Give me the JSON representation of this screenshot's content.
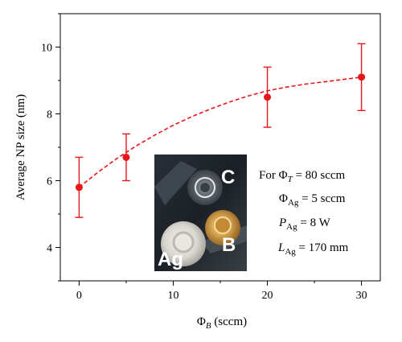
{
  "chart_data": {
    "type": "scatter",
    "xlabel_main": "Φ",
    "xlabel_sub": "B",
    "xlabel_unit": "(sccm)",
    "ylabel": "Average NP size (nm)",
    "xlim": [
      -2,
      32
    ],
    "ylim": [
      3,
      11
    ],
    "x_ticks": [
      0,
      10,
      20,
      30
    ],
    "y_ticks": [
      4,
      6,
      8,
      10
    ],
    "grid": false,
    "series": [
      {
        "x": [
          0,
          5,
          20,
          30
        ],
        "y": [
          5.8,
          6.7,
          8.5,
          9.1
        ],
        "err": [
          0.9,
          0.7,
          0.9,
          1.0
        ],
        "color": "#e8161b",
        "marker": "circle"
      }
    ],
    "fit_line": {
      "style": "dashed",
      "color": "#e8161b",
      "x": [
        0,
        2,
        4,
        6,
        8,
        10,
        12,
        14,
        16,
        18,
        20,
        22,
        24,
        26,
        28,
        30
      ],
      "y": [
        5.8,
        6.25,
        6.66,
        7.03,
        7.36,
        7.66,
        7.92,
        8.15,
        8.36,
        8.54,
        8.69,
        8.8,
        8.89,
        8.96,
        9.03,
        9.1
      ]
    },
    "annotation": {
      "line1": {
        "prefix": "For ",
        "sym": "Φ",
        "sub": "T",
        "value": " = 80 sccm"
      },
      "line2": {
        "sym": "Φ",
        "sub": "Ag",
        "value": " = 5 sccm"
      },
      "line3": {
        "sym": "P",
        "sub": "Ag",
        "value": " = 8 W"
      },
      "line4": {
        "sym": "L",
        "sub": "Ag",
        "value": " = 170 mm"
      }
    },
    "inset_photo_labels": [
      "C",
      "B",
      "Ag"
    ]
  }
}
